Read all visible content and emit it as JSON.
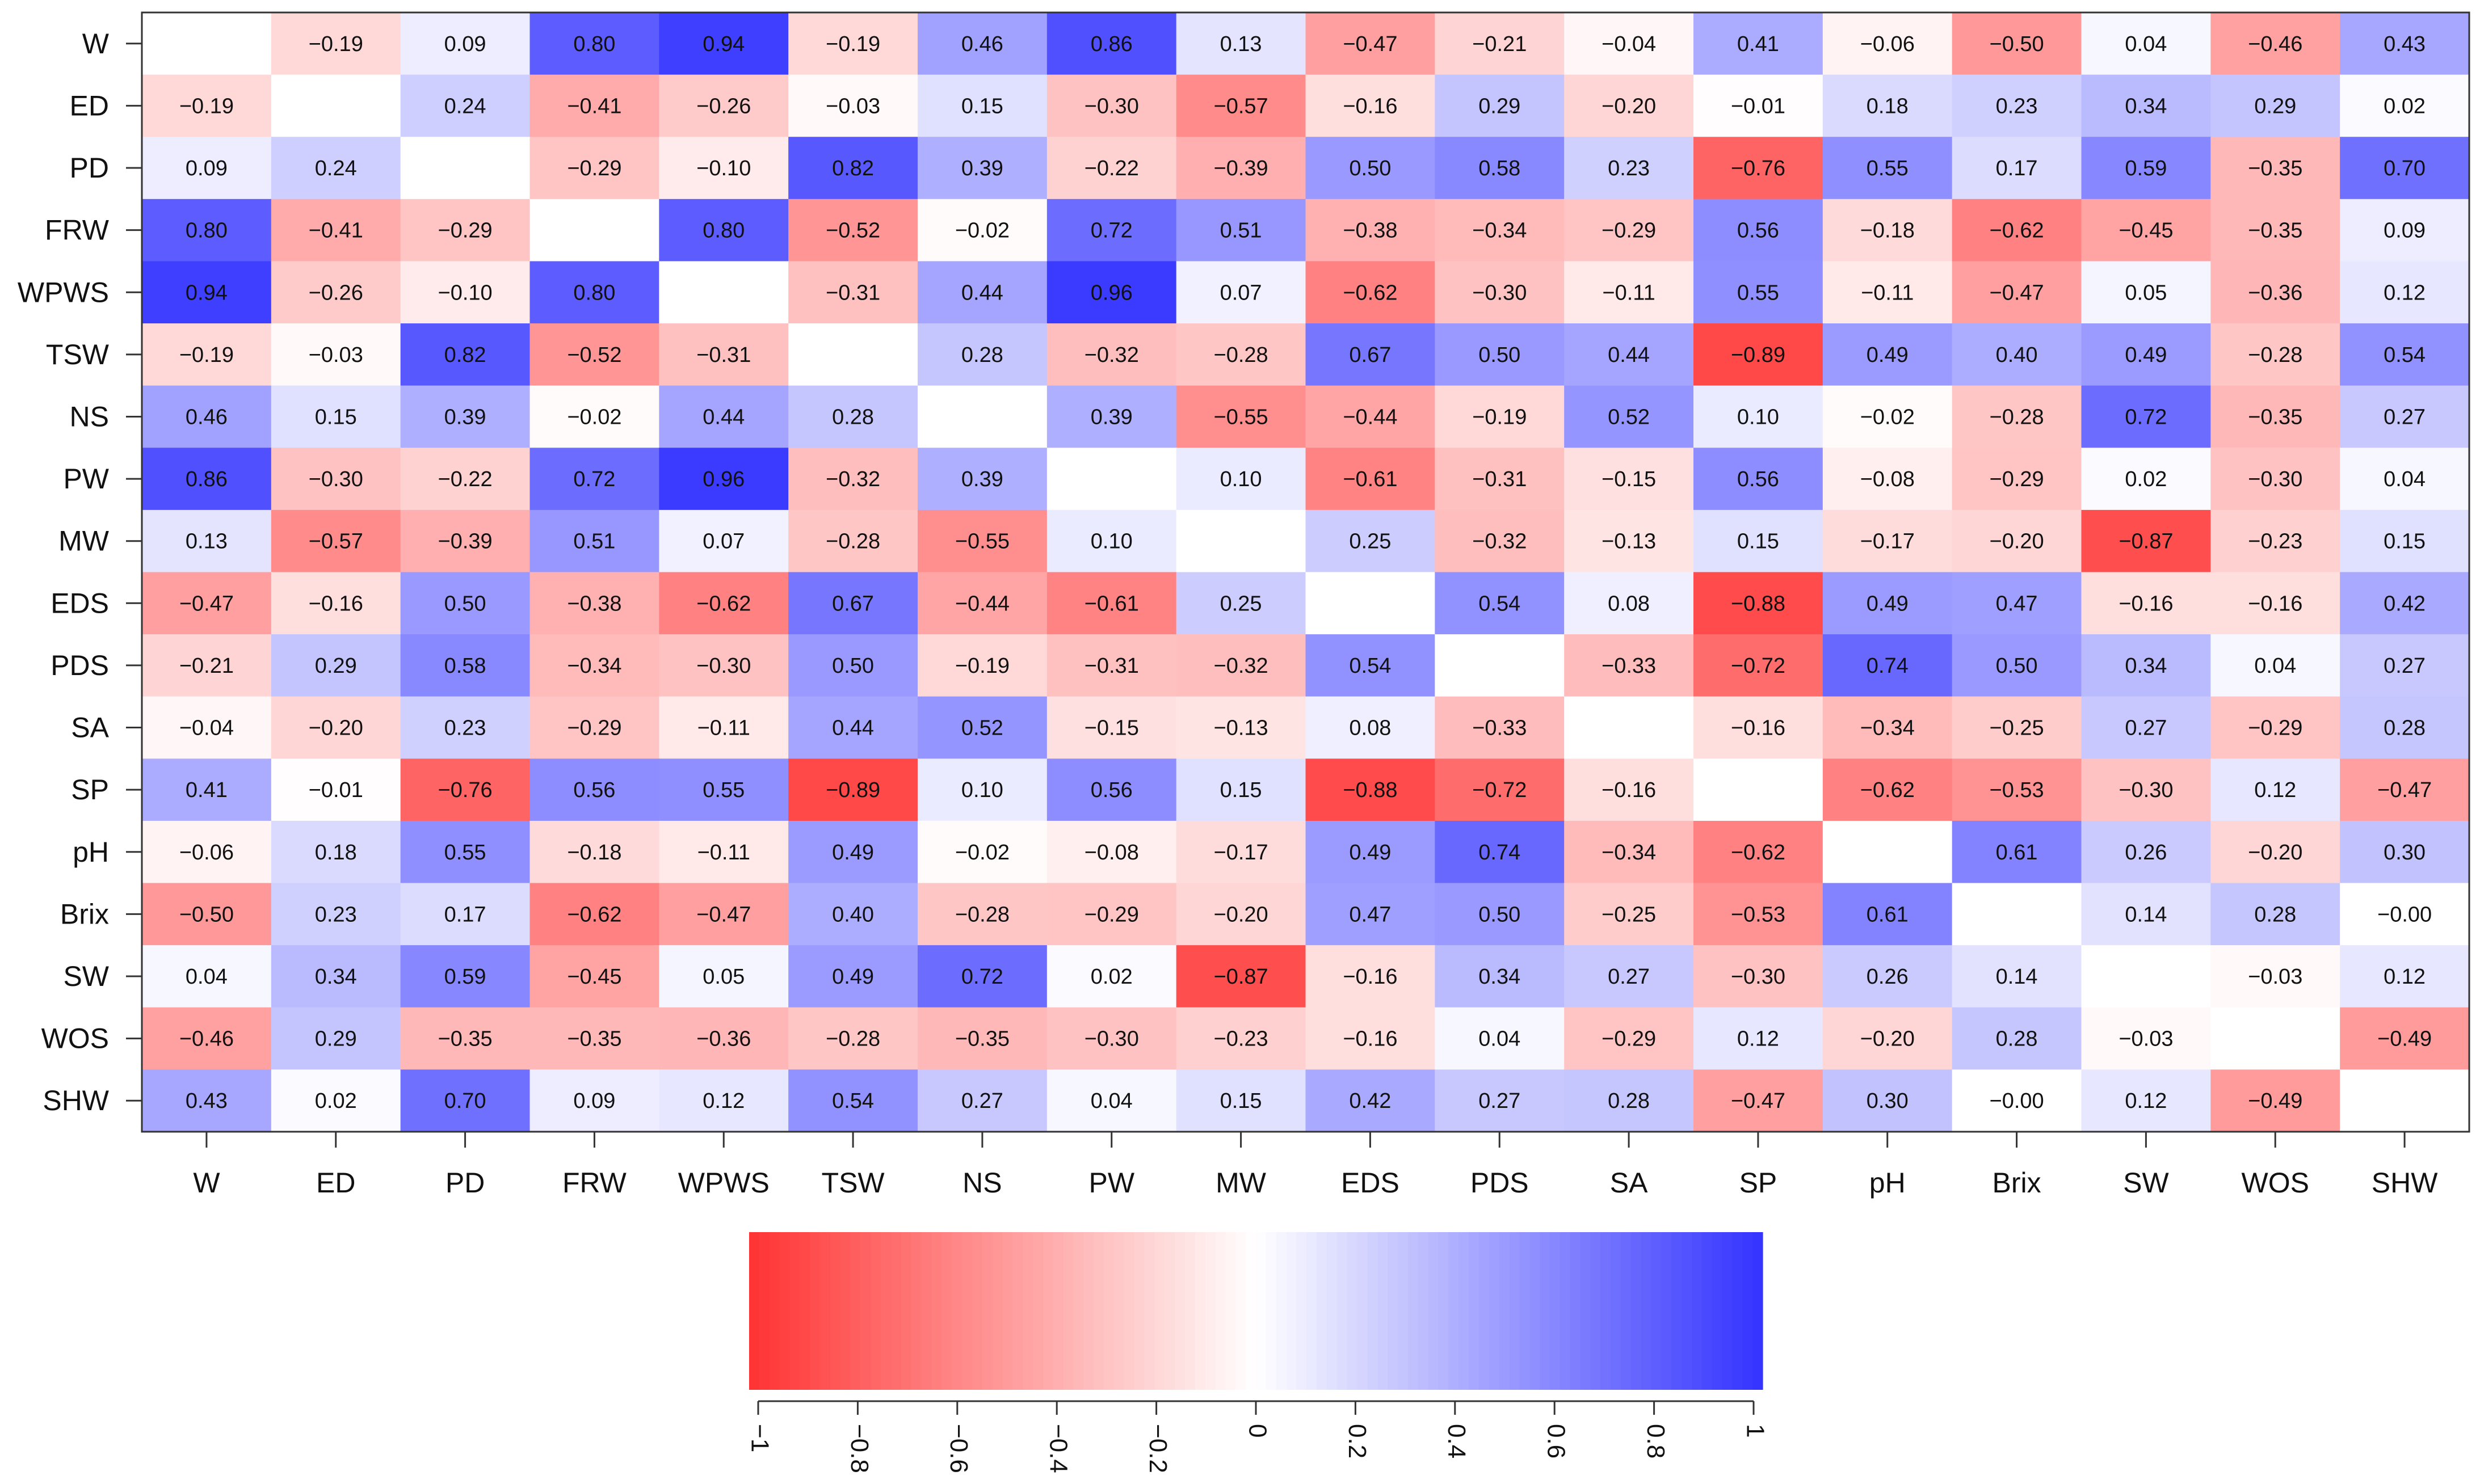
{
  "chart_data": {
    "type": "heatmap",
    "title": "",
    "variables": [
      "W",
      "ED",
      "PD",
      "FRW",
      "WPWS",
      "TSW",
      "NS",
      "PW",
      "MW",
      "EDS",
      "PDS",
      "SA",
      "SP",
      "pH",
      "Brix",
      "SW",
      "WOS",
      "SHW"
    ],
    "values": [
      [
        null,
        -0.19,
        0.09,
        0.8,
        0.94,
        -0.19,
        0.46,
        0.86,
        0.13,
        -0.47,
        -0.21,
        -0.04,
        0.41,
        -0.06,
        -0.5,
        0.04,
        -0.46,
        0.43
      ],
      [
        -0.19,
        null,
        0.24,
        -0.41,
        -0.26,
        -0.03,
        0.15,
        -0.3,
        -0.57,
        -0.16,
        0.29,
        -0.2,
        -0.01,
        0.18,
        0.23,
        0.34,
        0.29,
        0.02
      ],
      [
        0.09,
        0.24,
        null,
        -0.29,
        -0.1,
        0.82,
        0.39,
        -0.22,
        -0.39,
        0.5,
        0.58,
        0.23,
        -0.76,
        0.55,
        0.17,
        0.59,
        -0.35,
        0.7
      ],
      [
        0.8,
        -0.41,
        -0.29,
        null,
        0.8,
        -0.52,
        -0.02,
        0.72,
        0.51,
        -0.38,
        -0.34,
        -0.29,
        0.56,
        -0.18,
        -0.62,
        -0.45,
        -0.35,
        0.09
      ],
      [
        0.94,
        -0.26,
        -0.1,
        0.8,
        null,
        -0.31,
        0.44,
        0.96,
        0.07,
        -0.62,
        -0.3,
        -0.11,
        0.55,
        -0.11,
        -0.47,
        0.05,
        -0.36,
        0.12
      ],
      [
        -0.19,
        -0.03,
        0.82,
        -0.52,
        -0.31,
        null,
        0.28,
        -0.32,
        -0.28,
        0.67,
        0.5,
        0.44,
        -0.89,
        0.49,
        0.4,
        0.49,
        -0.28,
        0.54
      ],
      [
        0.46,
        0.15,
        0.39,
        -0.02,
        0.44,
        0.28,
        null,
        0.39,
        -0.55,
        -0.44,
        -0.19,
        0.52,
        0.1,
        -0.02,
        -0.28,
        0.72,
        -0.35,
        0.27
      ],
      [
        0.86,
        -0.3,
        -0.22,
        0.72,
        0.96,
        -0.32,
        0.39,
        null,
        0.1,
        -0.61,
        -0.31,
        -0.15,
        0.56,
        -0.08,
        -0.29,
        0.02,
        -0.3,
        0.04
      ],
      [
        0.13,
        -0.57,
        -0.39,
        0.51,
        0.07,
        -0.28,
        -0.55,
        0.1,
        null,
        0.25,
        -0.32,
        -0.13,
        0.15,
        -0.17,
        -0.2,
        -0.87,
        -0.23,
        0.15
      ],
      [
        -0.47,
        -0.16,
        0.5,
        -0.38,
        -0.62,
        0.67,
        -0.44,
        -0.61,
        0.25,
        null,
        0.54,
        0.08,
        -0.88,
        0.49,
        0.47,
        -0.16,
        -0.16,
        0.42
      ],
      [
        -0.21,
        0.29,
        0.58,
        -0.34,
        -0.3,
        0.5,
        -0.19,
        -0.31,
        -0.32,
        0.54,
        null,
        -0.33,
        -0.72,
        0.74,
        0.5,
        0.34,
        0.04,
        0.27
      ],
      [
        -0.04,
        -0.2,
        0.23,
        -0.29,
        -0.11,
        0.44,
        0.52,
        -0.15,
        -0.13,
        0.08,
        -0.33,
        null,
        -0.16,
        -0.34,
        -0.25,
        0.27,
        -0.29,
        0.28
      ],
      [
        0.41,
        -0.01,
        -0.76,
        0.56,
        0.55,
        -0.89,
        0.1,
        0.56,
        0.15,
        -0.88,
        -0.72,
        -0.16,
        null,
        -0.62,
        -0.53,
        -0.3,
        0.12,
        -0.47
      ],
      [
        -0.06,
        0.18,
        0.55,
        -0.18,
        -0.11,
        0.49,
        -0.02,
        -0.08,
        -0.17,
        0.49,
        0.74,
        -0.34,
        -0.62,
        null,
        0.61,
        0.26,
        -0.2,
        0.3
      ],
      [
        -0.5,
        0.23,
        0.17,
        -0.62,
        -0.47,
        0.4,
        -0.28,
        -0.29,
        -0.2,
        0.47,
        0.5,
        -0.25,
        -0.53,
        0.61,
        null,
        0.14,
        0.28,
        -0.0
      ],
      [
        0.04,
        0.34,
        0.59,
        -0.45,
        0.05,
        0.49,
        0.72,
        0.02,
        -0.87,
        -0.16,
        0.34,
        0.27,
        -0.3,
        0.26,
        0.14,
        null,
        -0.03,
        0.12
      ],
      [
        -0.46,
        0.29,
        -0.35,
        -0.35,
        -0.36,
        -0.28,
        -0.35,
        -0.3,
        -0.23,
        -0.16,
        0.04,
        -0.29,
        0.12,
        -0.2,
        0.28,
        -0.03,
        null,
        -0.49
      ],
      [
        0.43,
        0.02,
        0.7,
        0.09,
        0.12,
        0.54,
        0.27,
        0.04,
        0.15,
        0.42,
        0.27,
        0.28,
        -0.47,
        0.3,
        -0.0,
        0.12,
        -0.49,
        null
      ]
    ],
    "value_range": [
      -1,
      1
    ],
    "diagonal": "blank",
    "colorscale": {
      "negative": "#ff3333",
      "zero": "#ffffff",
      "positive": "#3333ff"
    },
    "colorbar": {
      "ticks": [
        -1,
        -0.8,
        -0.6,
        -0.4,
        -0.2,
        0,
        0.2,
        0.4,
        0.6,
        0.8,
        1
      ],
      "tick_labels": [
        "−1",
        "−0.8",
        "−0.6",
        "−0.4",
        "−0.2",
        "0",
        "0.2",
        "0.4",
        "0.6",
        "0.8",
        "1"
      ],
      "placement": "bottom-center"
    }
  }
}
